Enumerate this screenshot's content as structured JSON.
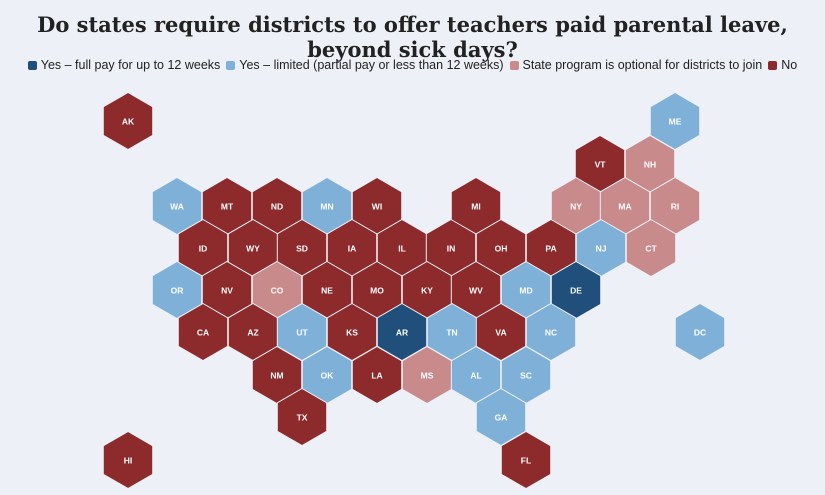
{
  "title": "Do states require districts to offer teachers paid parental leave, beyond sick days?",
  "legend": [
    {
      "label": "Yes – full pay for up to 12 weeks",
      "color": "#1f4f7a"
    },
    {
      "label": "Yes – limited (partial pay or less than 12 weeks)",
      "color": "#7fb1d8"
    },
    {
      "label": "State program is optional for districts to join",
      "color": "#c98a8c"
    },
    {
      "label": "No",
      "color": "#8c2a2c"
    }
  ],
  "states": [
    {
      "abbr": "AK",
      "category": 3
    },
    {
      "abbr": "ME",
      "category": 1
    },
    {
      "abbr": "VT",
      "category": 3
    },
    {
      "abbr": "NH",
      "category": 2
    },
    {
      "abbr": "WA",
      "category": 1
    },
    {
      "abbr": "MT",
      "category": 3
    },
    {
      "abbr": "ND",
      "category": 3
    },
    {
      "abbr": "MN",
      "category": 1
    },
    {
      "abbr": "WI",
      "category": 3
    },
    {
      "abbr": "MI",
      "category": 3
    },
    {
      "abbr": "NY",
      "category": 2
    },
    {
      "abbr": "MA",
      "category": 2
    },
    {
      "abbr": "RI",
      "category": 2
    },
    {
      "abbr": "ID",
      "category": 3
    },
    {
      "abbr": "WY",
      "category": 3
    },
    {
      "abbr": "SD",
      "category": 3
    },
    {
      "abbr": "IA",
      "category": 3
    },
    {
      "abbr": "IL",
      "category": 3
    },
    {
      "abbr": "IN",
      "category": 3
    },
    {
      "abbr": "OH",
      "category": 3
    },
    {
      "abbr": "PA",
      "category": 3
    },
    {
      "abbr": "NJ",
      "category": 1
    },
    {
      "abbr": "CT",
      "category": 2
    },
    {
      "abbr": "OR",
      "category": 1
    },
    {
      "abbr": "NV",
      "category": 3
    },
    {
      "abbr": "CO",
      "category": 2
    },
    {
      "abbr": "NE",
      "category": 3
    },
    {
      "abbr": "MO",
      "category": 3
    },
    {
      "abbr": "KY",
      "category": 3
    },
    {
      "abbr": "WV",
      "category": 3
    },
    {
      "abbr": "MD",
      "category": 1
    },
    {
      "abbr": "DE",
      "category": 0
    },
    {
      "abbr": "CA",
      "category": 3
    },
    {
      "abbr": "AZ",
      "category": 3
    },
    {
      "abbr": "UT",
      "category": 1
    },
    {
      "abbr": "KS",
      "category": 3
    },
    {
      "abbr": "AR",
      "category": 0
    },
    {
      "abbr": "TN",
      "category": 1
    },
    {
      "abbr": "VA",
      "category": 3
    },
    {
      "abbr": "NC",
      "category": 1
    },
    {
      "abbr": "DC",
      "category": 1
    },
    {
      "abbr": "NM",
      "category": 3
    },
    {
      "abbr": "OK",
      "category": 1
    },
    {
      "abbr": "LA",
      "category": 3
    },
    {
      "abbr": "MS",
      "category": 2
    },
    {
      "abbr": "AL",
      "category": 1
    },
    {
      "abbr": "SC",
      "category": 1
    },
    {
      "abbr": "TX",
      "category": 3
    },
    {
      "abbr": "GA",
      "category": 1
    },
    {
      "abbr": "HI",
      "category": 3
    },
    {
      "abbr": "FL",
      "category": 3
    }
  ]
}
